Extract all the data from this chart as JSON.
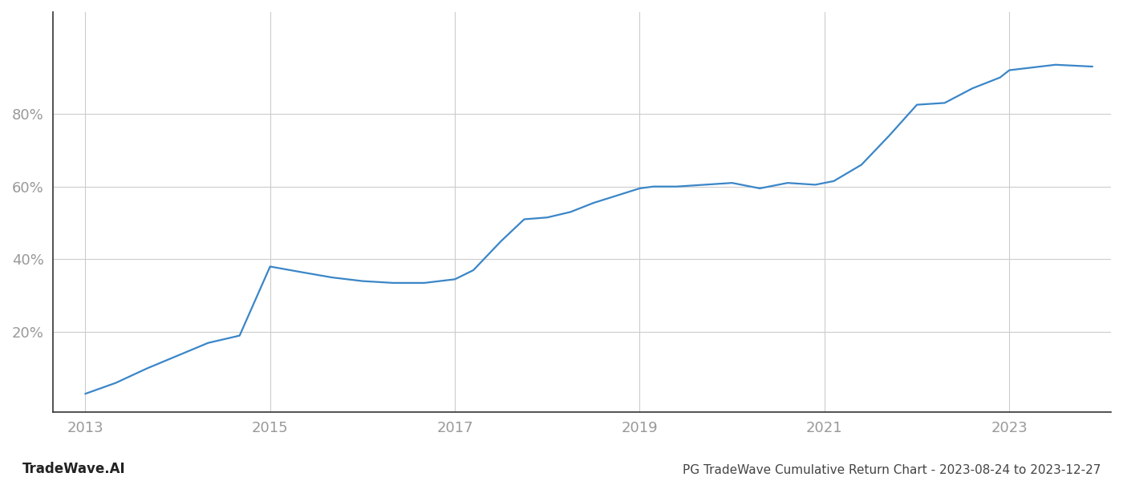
{
  "title": "PG TradeWave Cumulative Return Chart - 2023-08-24 to 2023-12-27",
  "watermark": "TradeWave.AI",
  "line_color": "#3a86c8",
  "background_color": "#ffffff",
  "grid_color": "#cccccc",
  "x_values": [
    2013.0,
    2013.33,
    2013.67,
    2014.0,
    2014.33,
    2014.67,
    2015.0,
    2015.33,
    2015.67,
    2016.0,
    2016.33,
    2016.67,
    2017.0,
    2017.2,
    2017.5,
    2017.75,
    2018.0,
    2018.25,
    2018.5,
    2018.75,
    2019.0,
    2019.15,
    2019.4,
    2019.7,
    2020.0,
    2020.3,
    2020.6,
    2020.9,
    2021.0,
    2021.1,
    2021.4,
    2021.7,
    2022.0,
    2022.3,
    2022.6,
    2022.9,
    2023.0,
    2023.5,
    2023.9
  ],
  "y_values": [
    3.0,
    6.0,
    10.0,
    13.5,
    17.0,
    19.0,
    38.0,
    36.5,
    35.0,
    34.0,
    33.5,
    33.5,
    34.5,
    37.0,
    45.0,
    51.0,
    51.5,
    53.0,
    55.5,
    57.5,
    59.5,
    60.0,
    60.0,
    60.5,
    61.0,
    59.5,
    61.0,
    60.5,
    61.0,
    61.5,
    66.0,
    74.0,
    82.5,
    83.0,
    87.0,
    90.0,
    92.0,
    93.5,
    93.0
  ],
  "xlim": [
    2012.65,
    2024.1
  ],
  "ylim": [
    -2,
    108
  ],
  "yticks": [
    20,
    40,
    60,
    80
  ],
  "ytick_labels": [
    "20%",
    "40%",
    "60%",
    "80%"
  ],
  "xticks": [
    2013,
    2015,
    2017,
    2019,
    2021,
    2023
  ],
  "xtick_fontsize": 13,
  "ytick_fontsize": 13,
  "title_fontsize": 11,
  "watermark_fontsize": 12,
  "line_width": 1.6,
  "axis_color": "#333333",
  "tick_color": "#999999",
  "spine_color": "#333333"
}
